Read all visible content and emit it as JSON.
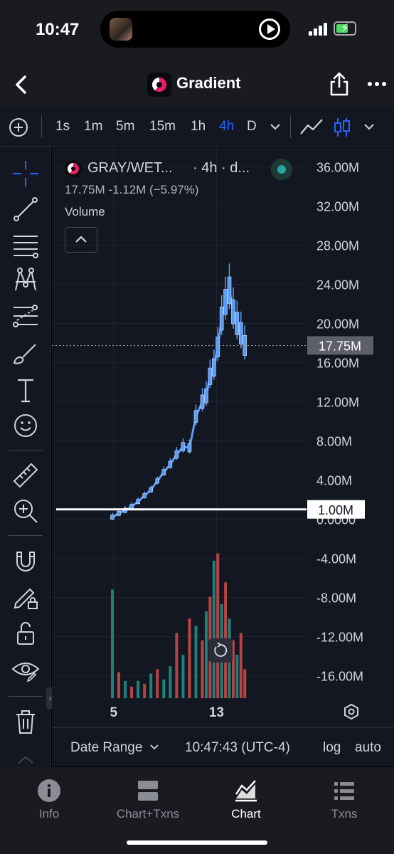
{
  "status": {
    "time": "10:47"
  },
  "header": {
    "title": "Gradient"
  },
  "toolbar": {
    "intervals": [
      "1s",
      "1m",
      "5m",
      "15m",
      "1h",
      "4h",
      "D"
    ],
    "active_interval": "4h"
  },
  "legend": {
    "pair": "GRAY/WET...",
    "meta": "· 4h · d...",
    "ohlc": "17.75M  -1.12M (−5.97%)",
    "indicator": "Volume"
  },
  "colors": {
    "accent": "#2962ff",
    "candle": "#5b9cf5",
    "vol_up": "#26a69a",
    "vol_down": "#ef5350",
    "background": "#131722"
  },
  "chart_data": {
    "type": "line",
    "y_ticks": [
      "36.00M",
      "32.00M",
      "28.00M",
      "24.00M",
      "20.00M",
      "16.00M",
      "12.00M",
      "8.00M",
      "4.00M",
      "0.0000",
      "-4.00M",
      "-8.00M",
      "-12.00M",
      "-16.00M"
    ],
    "ylim": [
      -18,
      38
    ],
    "x_ticks": [
      {
        "label": "5",
        "x": 5
      },
      {
        "label": "13",
        "x": 13
      }
    ],
    "xlim": [
      0.2,
      20
    ],
    "current_price": {
      "label": "17.75M",
      "value": 17.75
    },
    "horizontal_line": {
      "label": "1.00M",
      "value": 1.0
    },
    "price_series": {
      "name": "",
      "x": [
        4.9,
        5.4,
        5.9,
        6.4,
        6.9,
        7.4,
        7.9,
        8.4,
        8.9,
        9.4,
        9.9,
        10.4,
        10.9,
        11.4,
        11.9,
        12.2,
        12.5,
        12.8,
        13.1,
        13.4,
        13.7,
        14.0,
        14.3,
        14.6,
        14.9,
        15.2
      ],
      "values": [
        0.2,
        0.6,
        0.9,
        1.3,
        1.8,
        2.4,
        3.0,
        3.9,
        4.8,
        5.6,
        6.6,
        7.4,
        7.3,
        10.5,
        12.0,
        12.6,
        14.6,
        15.5,
        17.6,
        20.5,
        22.2,
        23.4,
        21.2,
        20.0,
        19.0,
        17.75
      ]
    },
    "volume_series": {
      "name": "Volume",
      "x": [
        4.9,
        5.4,
        5.9,
        6.4,
        6.9,
        7.4,
        7.9,
        8.4,
        8.9,
        9.4,
        9.9,
        10.4,
        10.9,
        11.4,
        11.9,
        12.2,
        12.5,
        12.8,
        13.1,
        13.4,
        13.7,
        14.0,
        14.3,
        14.6,
        14.9,
        15.2
      ],
      "values": [
        0.75,
        0.18,
        0.12,
        0.08,
        0.12,
        0.1,
        0.17,
        0.2,
        0.13,
        0.22,
        0.45,
        0.3,
        0.55,
        0.5,
        0.4,
        0.6,
        0.7,
        0.95,
        1.0,
        0.65,
        0.8,
        0.55,
        0.4,
        0.3,
        0.45,
        0.2
      ],
      "up": [
        true,
        false,
        true,
        false,
        true,
        false,
        true,
        false,
        true,
        true,
        false,
        true,
        false,
        true,
        false,
        true,
        false,
        true,
        false,
        true,
        false,
        true,
        false,
        true,
        false,
        false
      ]
    }
  },
  "footer": {
    "date_range": "Date Range",
    "clock": "10:47:43 (UTC-4)",
    "log": "log",
    "auto": "auto"
  },
  "tabs": [
    {
      "label": "Info",
      "icon": "info-icon"
    },
    {
      "label": "Chart+Txns",
      "icon": "split-view-icon"
    },
    {
      "label": "Chart",
      "icon": "area-chart-icon",
      "active": true
    },
    {
      "label": "Txns",
      "icon": "list-icon"
    }
  ]
}
